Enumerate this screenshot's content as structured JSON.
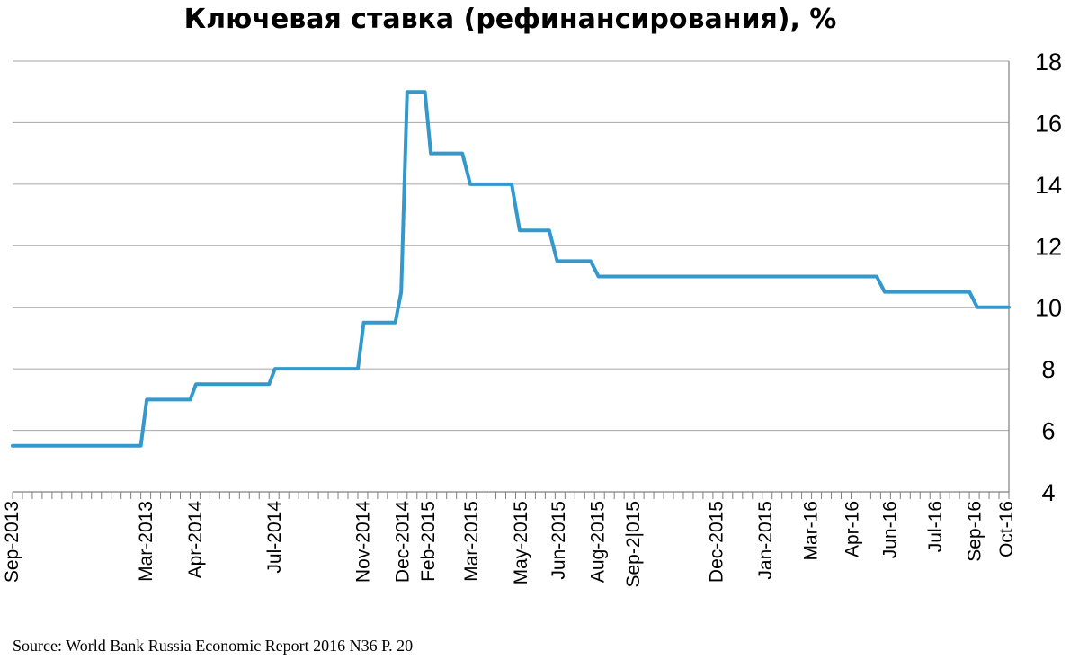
{
  "chart_data": {
    "type": "line",
    "title": "Ключевая ставка (рефинансирования), %",
    "source": "Source: World Bank Russia Economic Report 2016 N36 P. 20",
    "ylim": [
      4,
      18
    ],
    "yticks": [
      4,
      6,
      8,
      10,
      12,
      14,
      16,
      18
    ],
    "y_axis_side": "right",
    "grid": "horizontal",
    "legend": "none",
    "line_color": "#3399cc",
    "xlabels": [
      {
        "label": "Sep-2013",
        "x": 0
      },
      {
        "label": "Mar-2013",
        "x": 6.8
      },
      {
        "label": "Apr-2014",
        "x": 9.3
      },
      {
        "label": "Jul-2014",
        "x": 13.3
      },
      {
        "label": "Nov-2014",
        "x": 17.8
      },
      {
        "label": "Dec-2014",
        "x": 19.8
      },
      {
        "label": "Feb-2015",
        "x": 21.1
      },
      {
        "label": "Mar-2015",
        "x": 23.3
      },
      {
        "label": "May-2015",
        "x": 25.8
      },
      {
        "label": "Jun-2015",
        "x": 27.7
      },
      {
        "label": "Aug-2015",
        "x": 29.7
      },
      {
        "label": "Sep-2|015",
        "x": 31.5
      },
      {
        "label": "Dec-2015",
        "x": 35.7
      },
      {
        "label": "Jan-2015",
        "x": 38.2
      },
      {
        "label": "Mar-16",
        "x": 40.5
      },
      {
        "label": "Apr-16",
        "x": 42.6
      },
      {
        "label": "Jun-16",
        "x": 44.5
      },
      {
        "label": "Jul-16",
        "x": 46.8
      },
      {
        "label": "Sep-16",
        "x": 48.8
      },
      {
        "label": "Oct-16",
        "x": 50.4
      }
    ],
    "series": [
      {
        "points": [
          [
            0,
            5.5
          ],
          [
            6.5,
            5.5
          ],
          [
            6.8,
            7.0
          ],
          [
            9.0,
            7.0
          ],
          [
            9.3,
            7.5
          ],
          [
            13.0,
            7.5
          ],
          [
            13.3,
            8.0
          ],
          [
            17.5,
            8.0
          ],
          [
            17.8,
            9.5
          ],
          [
            19.4,
            9.5
          ],
          [
            19.7,
            10.5
          ],
          [
            20.0,
            17.0
          ],
          [
            20.9,
            17.0
          ],
          [
            21.2,
            15.0
          ],
          [
            22.8,
            15.0
          ],
          [
            23.2,
            14.0
          ],
          [
            25.3,
            14.0
          ],
          [
            25.7,
            12.5
          ],
          [
            27.2,
            12.5
          ],
          [
            27.6,
            11.5
          ],
          [
            29.3,
            11.5
          ],
          [
            29.7,
            11.0
          ],
          [
            43.8,
            11.0
          ],
          [
            44.2,
            10.5
          ],
          [
            48.5,
            10.5
          ],
          [
            48.9,
            10.0
          ],
          [
            50.5,
            10.0
          ]
        ]
      }
    ]
  }
}
